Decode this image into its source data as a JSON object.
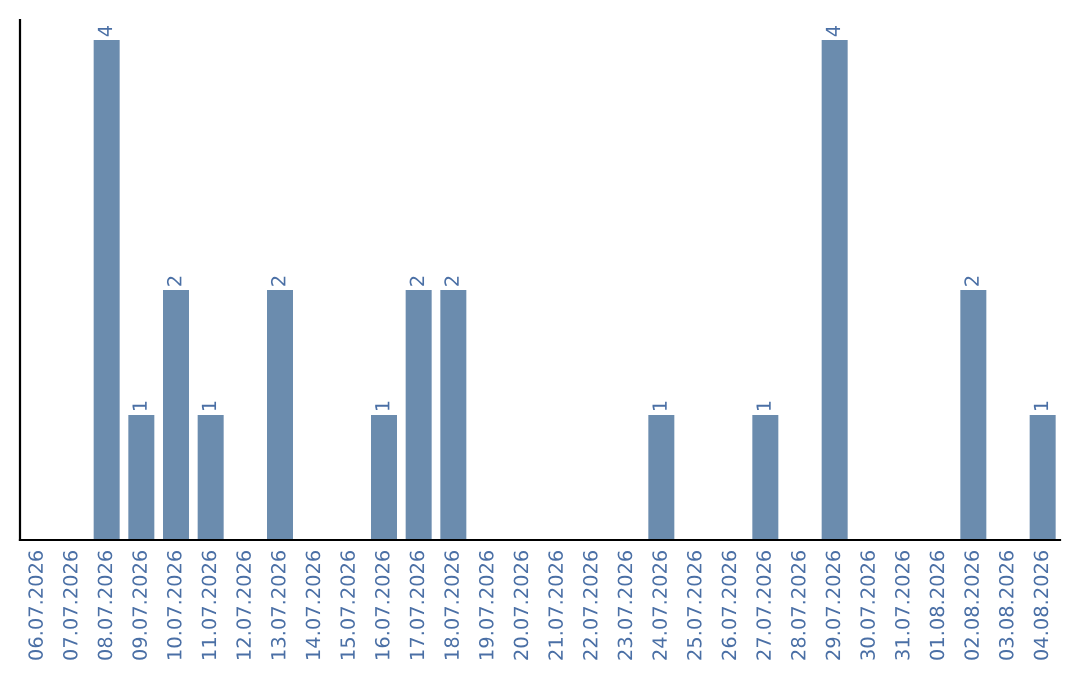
{
  "chart_data": {
    "type": "bar",
    "categories": [
      "06.07.2026",
      "07.07.2026",
      "08.07.2026",
      "09.07.2026",
      "10.07.2026",
      "11.07.2026",
      "12.07.2026",
      "13.07.2026",
      "14.07.2026",
      "15.07.2026",
      "16.07.2026",
      "17.07.2026",
      "18.07.2026",
      "19.07.2026",
      "20.07.2026",
      "21.07.2026",
      "22.07.2026",
      "23.07.2026",
      "24.07.2026",
      "25.07.2026",
      "26.07.2026",
      "27.07.2026",
      "28.07.2026",
      "29.07.2026",
      "30.07.2026",
      "31.07.2026",
      "01.08.2026",
      "02.08.2026",
      "03.08.2026",
      "04.08.2026"
    ],
    "values": [
      0,
      0,
      4,
      1,
      2,
      1,
      0,
      2,
      0,
      0,
      1,
      2,
      2,
      0,
      0,
      0,
      0,
      0,
      1,
      0,
      0,
      1,
      0,
      4,
      0,
      0,
      0,
      2,
      0,
      1
    ],
    "value_labels": [
      null,
      null,
      "4",
      "1",
      "2",
      "1",
      null,
      "2",
      null,
      null,
      "1",
      "2",
      "2",
      null,
      null,
      null,
      null,
      null,
      "1",
      null,
      null,
      "1",
      null,
      "4",
      null,
      null,
      null,
      "2",
      null,
      "1"
    ],
    "color": "#6b8cae",
    "ylim": [
      0,
      4.16
    ],
    "tick_labels": "x"
  }
}
